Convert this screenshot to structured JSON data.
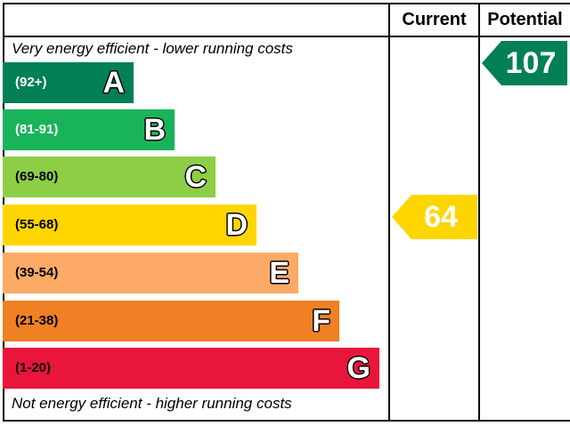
{
  "header": {
    "current_label": "Current",
    "potential_label": "Potential"
  },
  "top_caption": "Very energy efficient - lower running costs",
  "bottom_caption": "Not energy efficient - higher running costs",
  "chart_data": {
    "type": "bar",
    "categories": [
      "A",
      "B",
      "C",
      "D",
      "E",
      "F",
      "G"
    ],
    "bands": [
      {
        "letter": "A",
        "range": "(92+)",
        "color": "#008054",
        "range_color": "#ffffff"
      },
      {
        "letter": "B",
        "range": "(81-91)",
        "color": "#19b459",
        "range_color": "#ffffff"
      },
      {
        "letter": "C",
        "range": "(69-80)",
        "color": "#8dce46",
        "range_color": "#000000"
      },
      {
        "letter": "D",
        "range": "(55-68)",
        "color": "#ffd500",
        "range_color": "#000000"
      },
      {
        "letter": "E",
        "range": "(39-54)",
        "color": "#fcaa65",
        "range_color": "#000000"
      },
      {
        "letter": "F",
        "range": "(21-38)",
        "color": "#ef8023",
        "range_color": "#000000"
      },
      {
        "letter": "G",
        "range": "(1-20)",
        "color": "#e9153b",
        "range_color": "#000000"
      }
    ],
    "current": {
      "value": 64,
      "band": "D",
      "color": "#ffd500"
    },
    "potential": {
      "value": 107,
      "band": "A",
      "color": "#008054"
    }
  }
}
